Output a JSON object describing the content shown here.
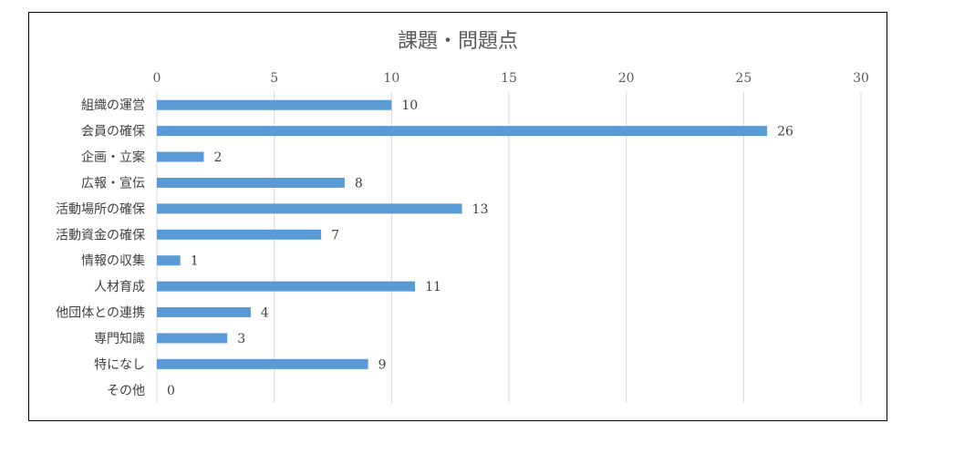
{
  "chart_data": {
    "type": "bar",
    "orientation": "horizontal",
    "title": "課題・問題点",
    "xlabel": "",
    "ylabel": "",
    "xlim": [
      0,
      30
    ],
    "x_ticks": [
      0,
      5,
      10,
      15,
      20,
      25,
      30
    ],
    "x_axis_position": "top",
    "grid": true,
    "legend": "none",
    "bar_color": "#5b9bd5",
    "categories": [
      "組織の運営",
      "会員の確保",
      "企画・立案",
      "広報・宣伝",
      "活動場所の確保",
      "活動資金の確保",
      "情報の収集",
      "人材育成",
      "他団体との連携",
      "専門知識",
      "特になし",
      "その他"
    ],
    "values": [
      10,
      26,
      2,
      8,
      13,
      7,
      1,
      11,
      4,
      3,
      9,
      0
    ],
    "data_labels": true
  }
}
